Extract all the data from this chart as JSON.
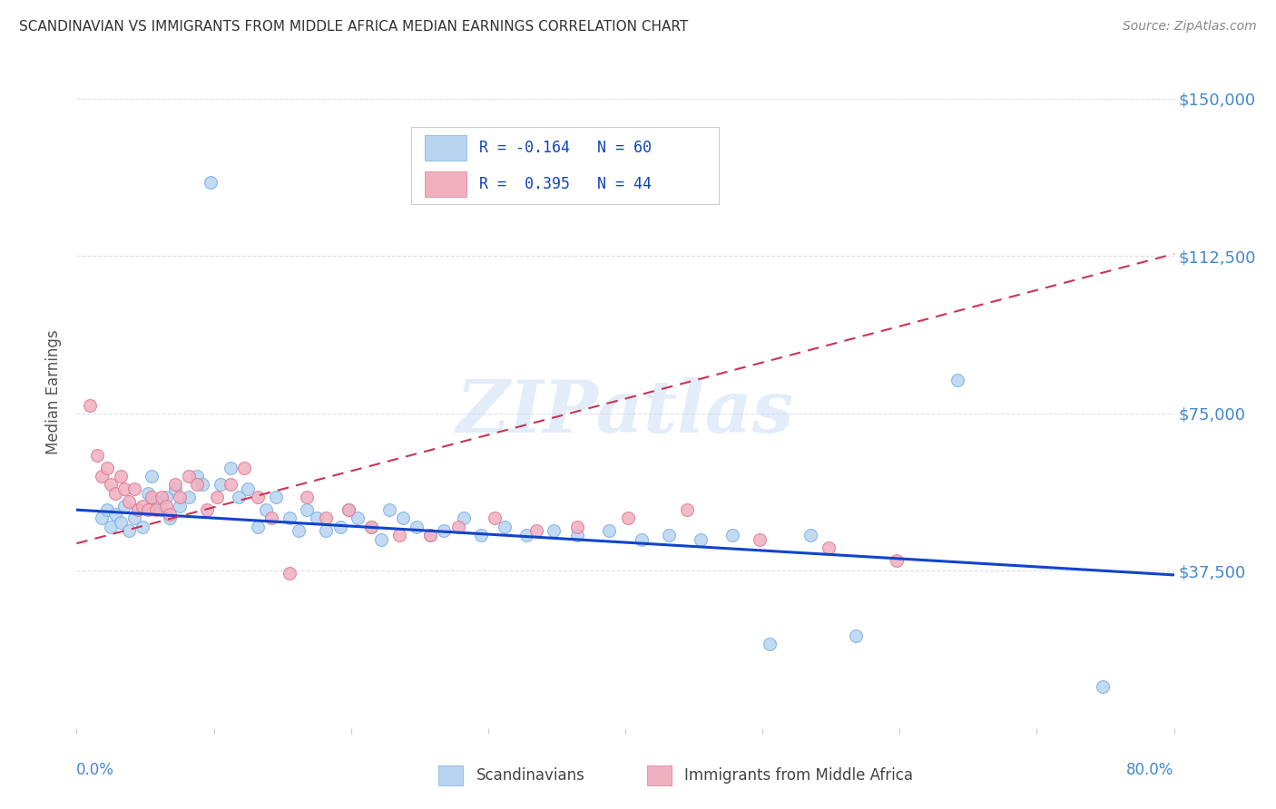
{
  "title": "SCANDINAVIAN VS IMMIGRANTS FROM MIDDLE AFRICA MEDIAN EARNINGS CORRELATION CHART",
  "source": "Source: ZipAtlas.com",
  "ylabel": "Median Earnings",
  "yticks": [
    0,
    37500,
    75000,
    112500,
    150000
  ],
  "ytick_labels": [
    "",
    "$37,500",
    "$75,000",
    "$112,500",
    "$150,000"
  ],
  "xmin": 0.0,
  "xmax": 0.8,
  "ymin": 0,
  "ymax": 160000,
  "watermark": "ZIPatlas",
  "blue_color": "#b8d4f0",
  "blue_edge": "#7aaee8",
  "pink_color": "#f0b0c0",
  "pink_edge": "#e07890",
  "trend_blue": "#1144cc",
  "trend_pink": "#cc3355",
  "grid_color": "#d8e0ec",
  "title_color": "#333333",
  "axis_label_color": "#4488cc",
  "background_color": "#ffffff",
  "scandinavian_x": [
    0.018,
    0.022,
    0.025,
    0.028,
    0.032,
    0.035,
    0.038,
    0.042,
    0.045,
    0.048,
    0.052,
    0.055,
    0.058,
    0.062,
    0.065,
    0.068,
    0.072,
    0.075,
    0.082,
    0.088,
    0.092,
    0.098,
    0.105,
    0.112,
    0.118,
    0.125,
    0.132,
    0.138,
    0.145,
    0.155,
    0.162,
    0.168,
    0.175,
    0.182,
    0.192,
    0.198,
    0.205,
    0.215,
    0.222,
    0.228,
    0.238,
    0.248,
    0.258,
    0.268,
    0.282,
    0.295,
    0.312,
    0.328,
    0.348,
    0.365,
    0.388,
    0.412,
    0.432,
    0.455,
    0.478,
    0.505,
    0.535,
    0.568,
    0.642,
    0.748
  ],
  "scandinavian_y": [
    50000,
    52000,
    48000,
    51000,
    49000,
    53000,
    47000,
    50000,
    52000,
    48000,
    56000,
    60000,
    54000,
    52000,
    55000,
    50000,
    57000,
    53000,
    55000,
    60000,
    58000,
    130000,
    58000,
    62000,
    55000,
    57000,
    48000,
    52000,
    55000,
    50000,
    47000,
    52000,
    50000,
    47000,
    48000,
    52000,
    50000,
    48000,
    45000,
    52000,
    50000,
    48000,
    46000,
    47000,
    50000,
    46000,
    48000,
    46000,
    47000,
    46000,
    47000,
    45000,
    46000,
    45000,
    46000,
    20000,
    46000,
    22000,
    83000,
    10000
  ],
  "immigrant_x": [
    0.01,
    0.015,
    0.018,
    0.022,
    0.025,
    0.028,
    0.032,
    0.035,
    0.038,
    0.042,
    0.045,
    0.048,
    0.052,
    0.055,
    0.058,
    0.062,
    0.065,
    0.068,
    0.072,
    0.075,
    0.082,
    0.088,
    0.095,
    0.102,
    0.112,
    0.122,
    0.132,
    0.142,
    0.155,
    0.168,
    0.182,
    0.198,
    0.215,
    0.235,
    0.258,
    0.278,
    0.305,
    0.335,
    0.365,
    0.402,
    0.445,
    0.498,
    0.548,
    0.598
  ],
  "immigrant_y": [
    77000,
    65000,
    60000,
    62000,
    58000,
    56000,
    60000,
    57000,
    54000,
    57000,
    52000,
    53000,
    52000,
    55000,
    52000,
    55000,
    53000,
    51000,
    58000,
    55000,
    60000,
    58000,
    52000,
    55000,
    58000,
    62000,
    55000,
    50000,
    37000,
    55000,
    50000,
    52000,
    48000,
    46000,
    46000,
    48000,
    50000,
    47000,
    48000,
    50000,
    52000,
    45000,
    43000,
    40000
  ],
  "blue_trendline_x": [
    0.0,
    0.8
  ],
  "blue_trendline_y": [
    52000,
    36500
  ],
  "pink_trendline_x": [
    0.0,
    0.8
  ],
  "pink_trendline_y": [
    44000,
    113000
  ],
  "legend_r1": "R = -0.164",
  "legend_n1": "N = 60",
  "legend_r2": "R =  0.395",
  "legend_n2": "N = 44"
}
